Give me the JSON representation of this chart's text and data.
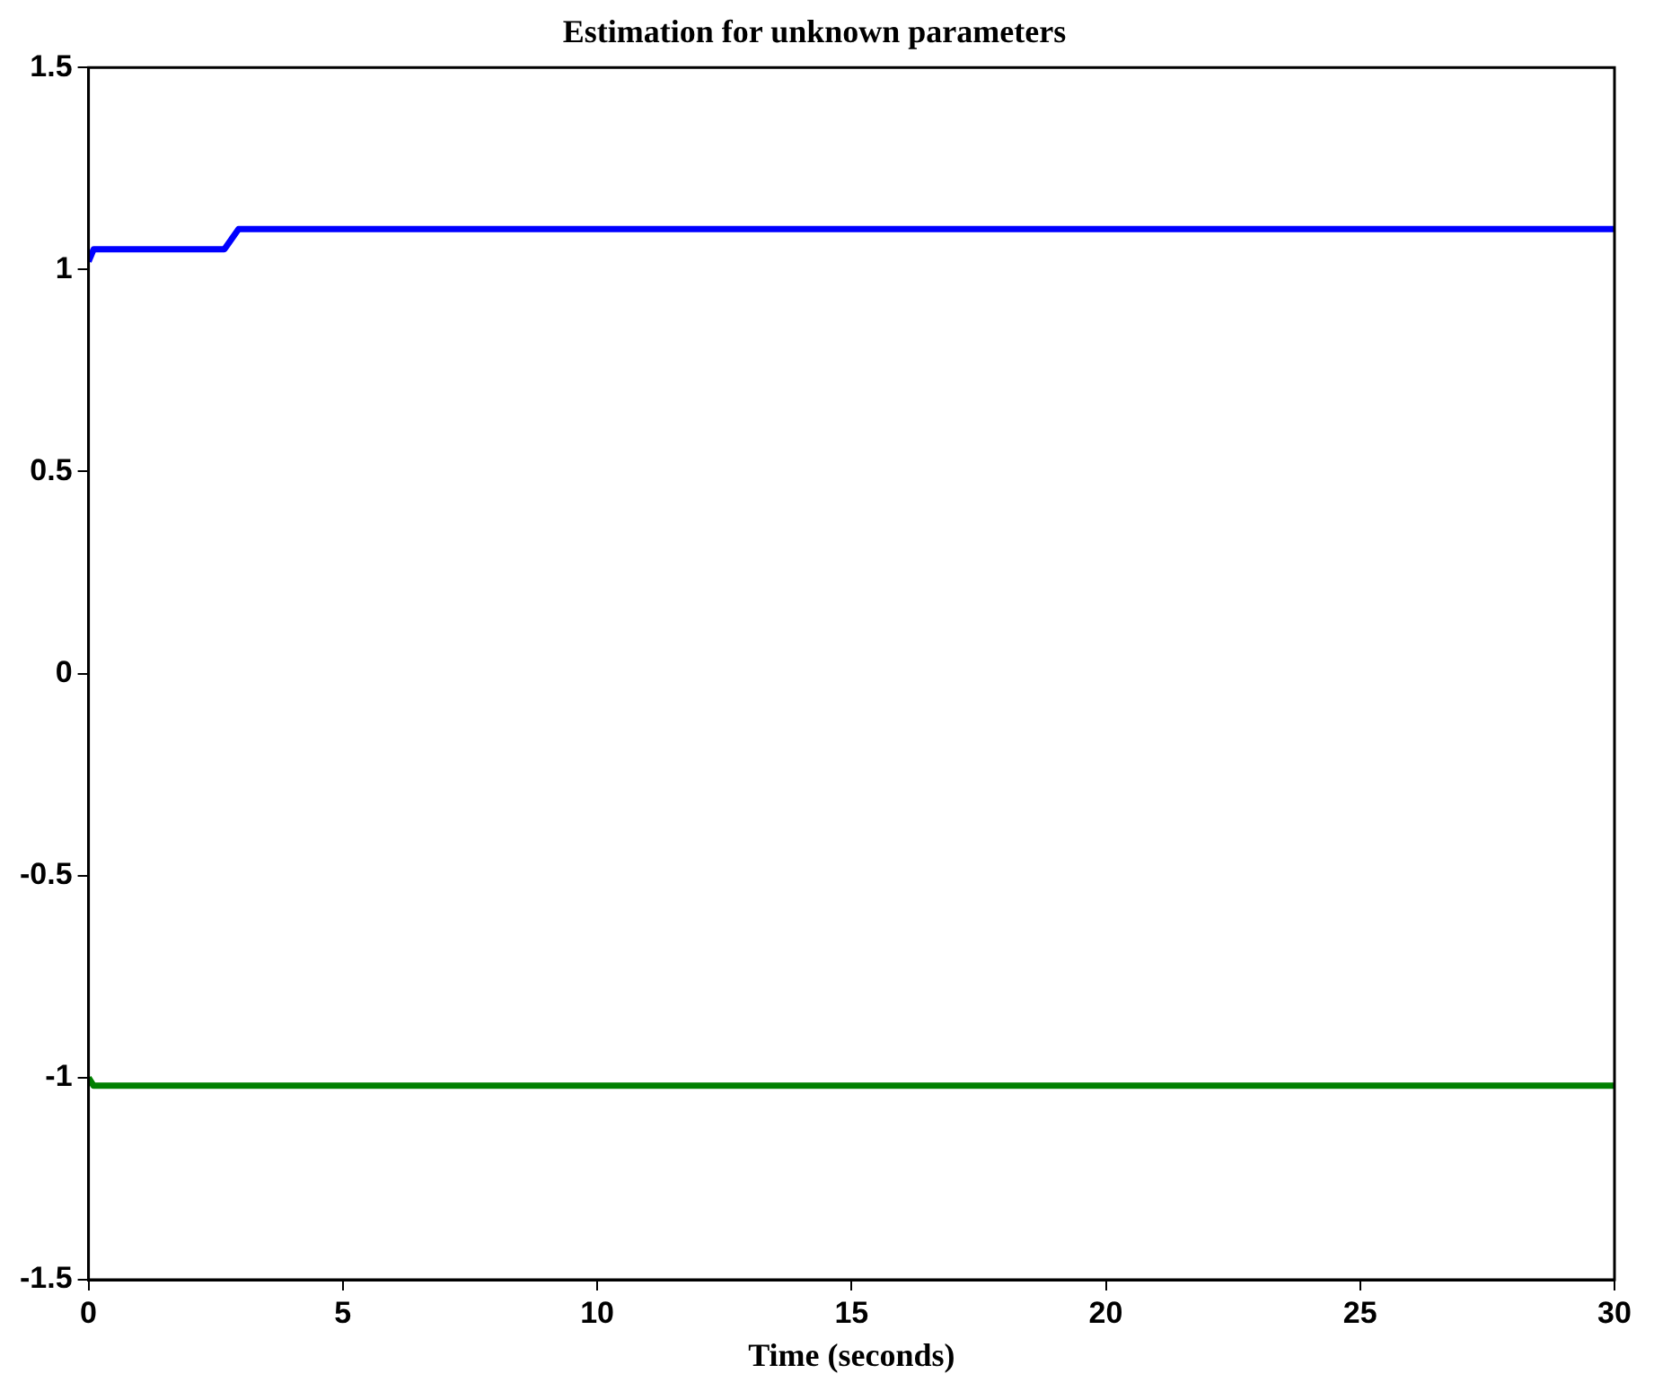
{
  "chart_data": {
    "type": "line",
    "title": "Estimation for unknown parameters",
    "xlabel": "Time (seconds)",
    "series": [
      {
        "color": "#0000ff",
        "x": [
          0,
          0.1,
          0.2,
          2.67,
          2.95,
          30
        ],
        "values": [
          1.02,
          1.05,
          1.05,
          1.05,
          1.1,
          1.1
        ]
      },
      {
        "color": "#008000",
        "x": [
          0,
          0.1,
          30
        ],
        "values": [
          -1.0,
          -1.02,
          -1.02
        ]
      }
    ],
    "xlim": [
      0,
      30
    ],
    "xticks": [
      0,
      5,
      10,
      15,
      20,
      25,
      30
    ],
    "ylim": [
      -1.5,
      1.5
    ],
    "yticks": [
      -1.5,
      -1,
      -0.5,
      0,
      0.5,
      1,
      1.5
    ],
    "grid": false,
    "legend": false,
    "marker": "none",
    "line_style": "solid"
  }
}
